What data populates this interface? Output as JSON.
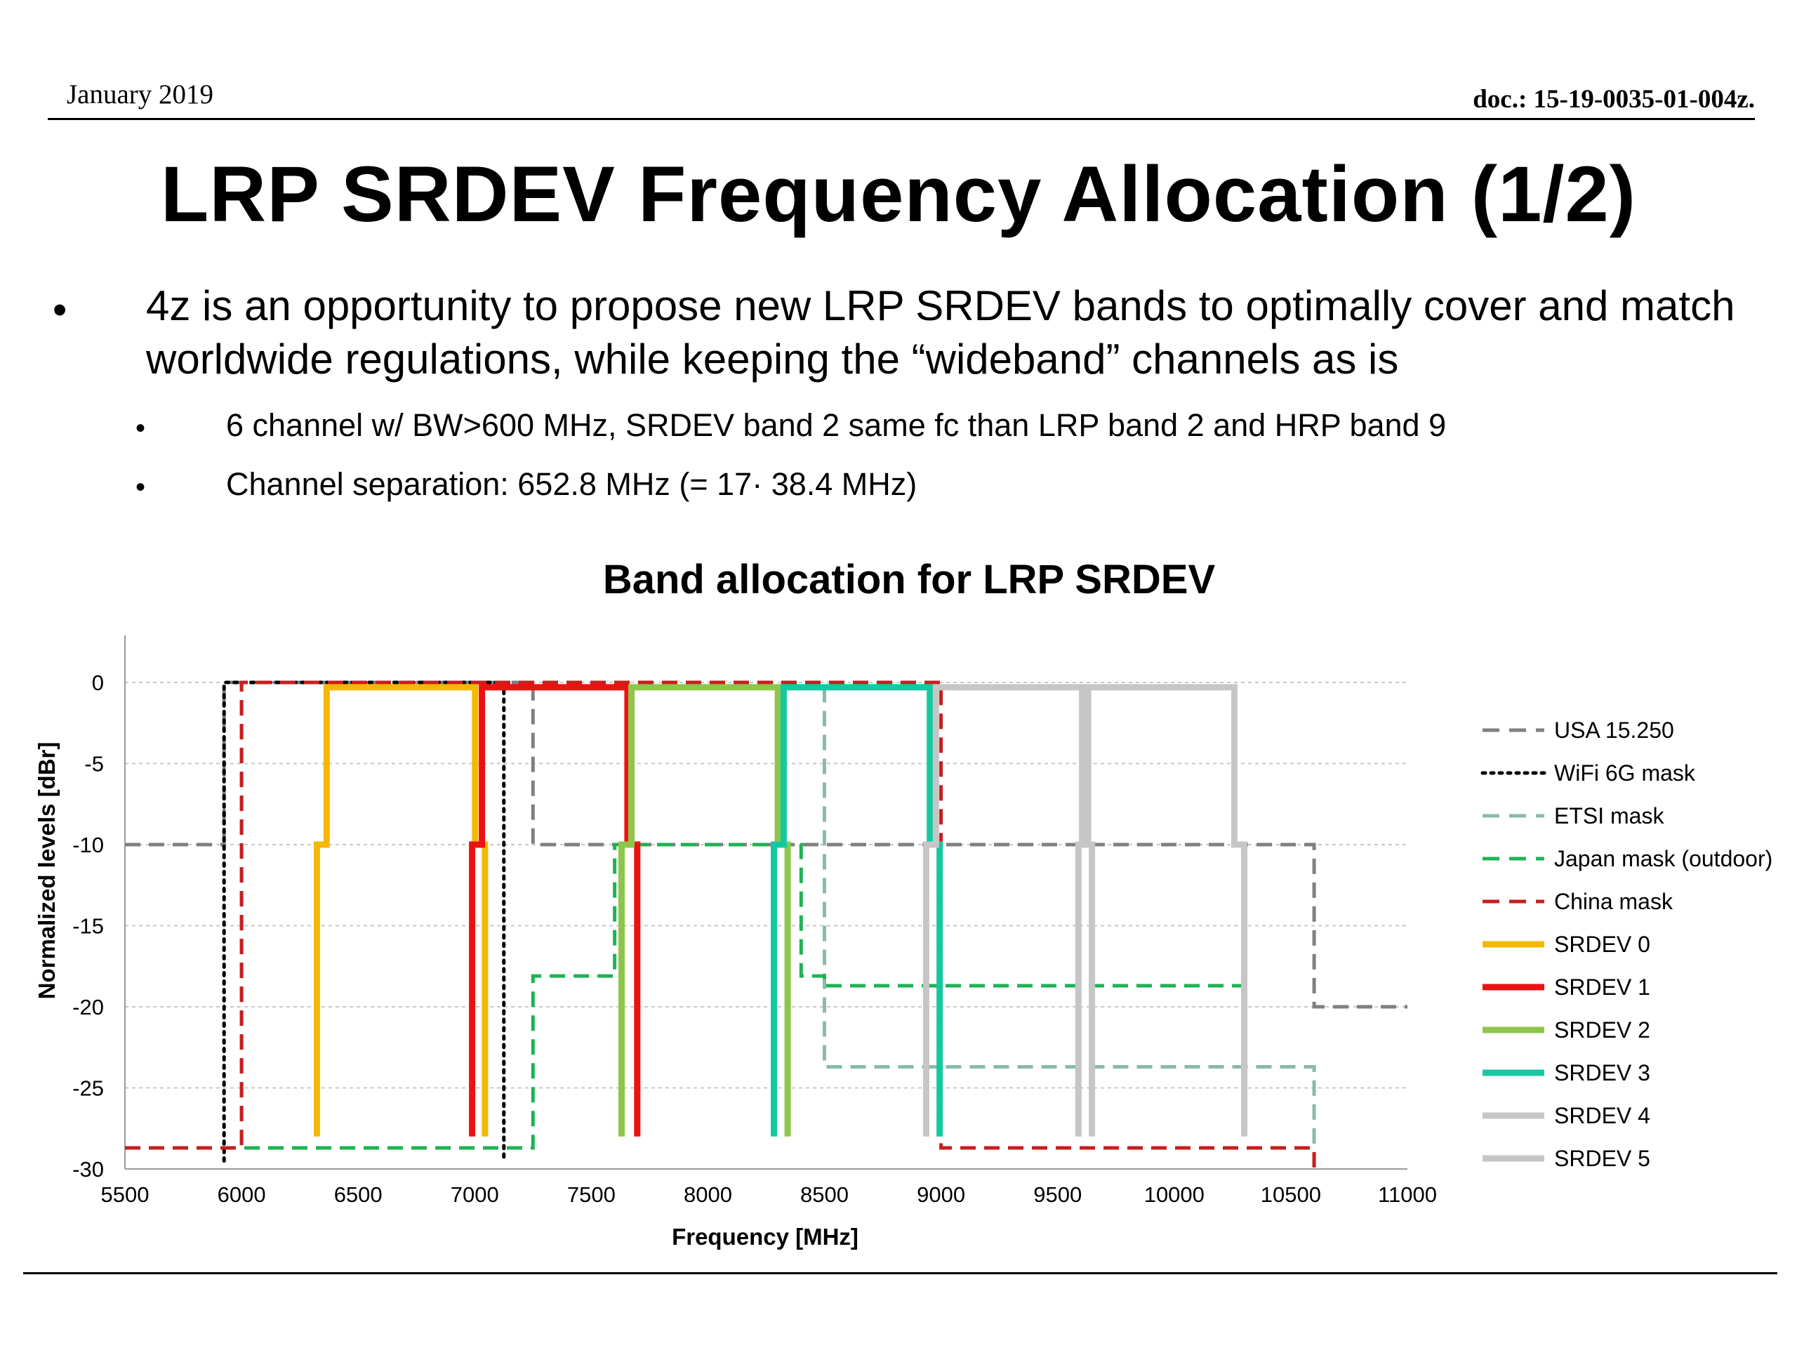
{
  "header": {
    "date": "January 2019",
    "doc": "doc.: 15-19-0035-01-004z."
  },
  "slide": {
    "title": "LRP SRDEV Frequency Allocation (1/2)",
    "bullets": [
      {
        "marker": "•",
        "text": "4z is an opportunity to propose new LRP SRDEV bands to optimally cover and match worldwide regulations, while keeping the “wideband” channels as is"
      },
      {
        "marker": "•",
        "text": "6 channel w/ BW>600 MHz, SRDEV band 2 same fc than LRP band 2 and HRP band 9"
      },
      {
        "marker": "•",
        "text": "Channel separation: 652.8 MHz (= 17· 38.4 MHz)"
      }
    ]
  },
  "chart_data": {
    "type": "line",
    "title": "Band allocation for LRP SRDEV",
    "xlabel": "Frequency [MHz]",
    "ylabel": "Normalized levels [dBr]",
    "xlim": [
      5500,
      11000
    ],
    "ylim": [
      -30,
      0
    ],
    "xticks": [
      5500,
      6000,
      6500,
      7000,
      7500,
      8000,
      8500,
      9000,
      9500,
      10000,
      10500,
      11000
    ],
    "yticks": [
      0,
      -5,
      -10,
      -15,
      -20,
      -25,
      -30
    ],
    "grid": "horizontal dotted",
    "legend_position": "right",
    "series": [
      {
        "name": "USA 15.250",
        "color": "#808080",
        "style": "dashed",
        "width": 5,
        "x": [
          5500,
          5925,
          5925,
          7250,
          7250,
          10600,
          10600,
          11000
        ],
        "y": [
          -10,
          -10,
          0,
          0,
          -10,
          -10,
          -20,
          -20
        ]
      },
      {
        "name": "WiFi 6G mask",
        "color": "#000000",
        "style": "dotted",
        "width": 5,
        "x": [
          5925,
          5925,
          7125,
          7125
        ],
        "y": [
          -29.5,
          0,
          0,
          -29.5
        ]
      },
      {
        "name": "ETSI mask",
        "color": "#88bba8",
        "style": "dashed",
        "width": 5,
        "x": [
          5500,
          6000,
          6000,
          8500,
          8500,
          10600,
          10600
        ],
        "y": [
          -28.7,
          -28.7,
          0,
          0,
          -23.7,
          -23.7,
          -28.7
        ]
      },
      {
        "name": "Japan mask (outdoor)",
        "color": "#1fb254",
        "style": "dashed",
        "width": 5,
        "x": [
          5500,
          7250,
          7250,
          7600,
          7600,
          8400,
          8400,
          8500,
          8500,
          10300
        ],
        "y": [
          -28.7,
          -28.7,
          -18.1,
          -18.1,
          -10,
          -10,
          -18.1,
          -18.1,
          -18.7,
          -18.7
        ]
      },
      {
        "name": "China mask",
        "color": "#c81e1e",
        "style": "dashed",
        "width": 5,
        "x": [
          5500,
          6000,
          6000,
          9000,
          9000,
          10600,
          10600
        ],
        "y": [
          -28.7,
          -28.7,
          0,
          0,
          -28.7,
          -28.7,
          -30
        ]
      },
      {
        "name": "SRDEV 0",
        "color": "#f5b800",
        "style": "solid",
        "width": 9,
        "x": [
          6323,
          6323,
          6365,
          6365,
          7002,
          7002,
          7044,
          7044
        ],
        "y": [
          -28,
          -10,
          -10,
          -0.3,
          -0.3,
          -10,
          -10,
          -28
        ]
      },
      {
        "name": "SRDEV 1",
        "color": "#ee1111",
        "style": "solid",
        "width": 9,
        "x": [
          6989,
          6989,
          7031,
          7031,
          7655,
          7655,
          7697,
          7697
        ],
        "y": [
          -28,
          -10,
          -10,
          -0.3,
          -0.3,
          -10,
          -10,
          -28
        ]
      },
      {
        "name": "SRDEV 2",
        "color": "#8dc64a",
        "style": "solid",
        "width": 9,
        "x": [
          7630,
          7630,
          7672,
          7672,
          8300,
          8300,
          8342,
          8342
        ],
        "y": [
          -28,
          -10,
          -10,
          -0.3,
          -0.3,
          -10,
          -10,
          -28
        ]
      },
      {
        "name": "SRDEV 3",
        "color": "#14c9a0",
        "style": "solid",
        "width": 9,
        "x": [
          8283,
          8283,
          8325,
          8325,
          8952,
          8952,
          8994,
          8994
        ],
        "y": [
          -28,
          -10,
          -10,
          -0.3,
          -0.3,
          -10,
          -10,
          -28
        ]
      },
      {
        "name": "SRDEV 4",
        "color": "#c6c6c6",
        "style": "solid",
        "width": 9,
        "x": [
          8936,
          8936,
          8978,
          8978,
          9605,
          9605,
          9647,
          9647
        ],
        "y": [
          -28,
          -10,
          -10,
          -0.3,
          -0.3,
          -10,
          -10,
          -28
        ]
      },
      {
        "name": "SRDEV 5",
        "color": "#c6c6c6",
        "style": "solid",
        "width": 9,
        "x": [
          9589,
          9589,
          9631,
          9631,
          10258,
          10258,
          10300,
          10300
        ],
        "y": [
          -28,
          -10,
          -10,
          -0.3,
          -0.3,
          -10,
          -10,
          -28
        ]
      }
    ]
  }
}
